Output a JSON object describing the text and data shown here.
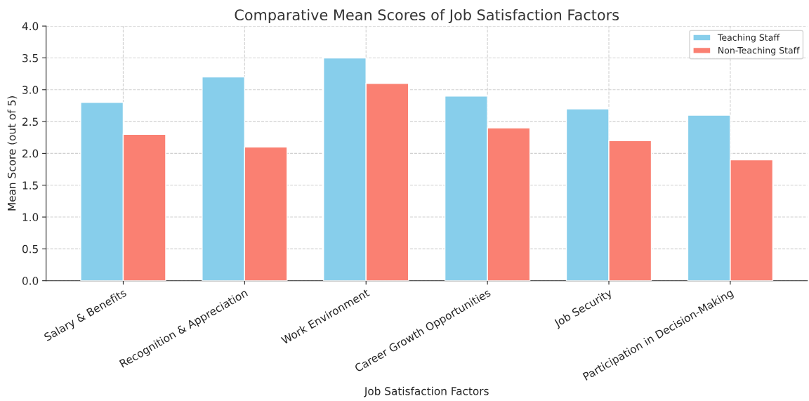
{
  "chart_data": {
    "type": "bar",
    "title": "Comparative Mean Scores of Job Satisfaction Factors",
    "xlabel": "Job Satisfaction Factors",
    "ylabel": "Mean Score (out of 5)",
    "categories": [
      "Salary & Benefits",
      "Recognition & Appreciation",
      "Work Environment",
      "Career Growth Opportunities",
      "Job Security",
      "Participation in Decision-Making"
    ],
    "series": [
      {
        "name": "Teaching Staff",
        "color": "#87ceeb",
        "values": [
          2.8,
          3.2,
          3.5,
          2.9,
          2.7,
          2.6
        ]
      },
      {
        "name": "Non-Teaching Staff",
        "color": "#fa8072",
        "values": [
          2.3,
          2.1,
          3.1,
          2.4,
          2.2,
          1.9
        ]
      }
    ],
    "ylim": [
      0,
      4
    ],
    "yticks": [
      {
        "value": 0,
        "label": "0.0"
      },
      0.5,
      {
        "value": 1,
        "label": "1.0"
      },
      1.5,
      {
        "value": 2,
        "label": "2.0"
      },
      2.5,
      {
        "value": 3,
        "label": "3.0"
      },
      3.5,
      {
        "value": 4,
        "label": "4.0"
      }
    ],
    "grid": true,
    "legend": "top right"
  }
}
